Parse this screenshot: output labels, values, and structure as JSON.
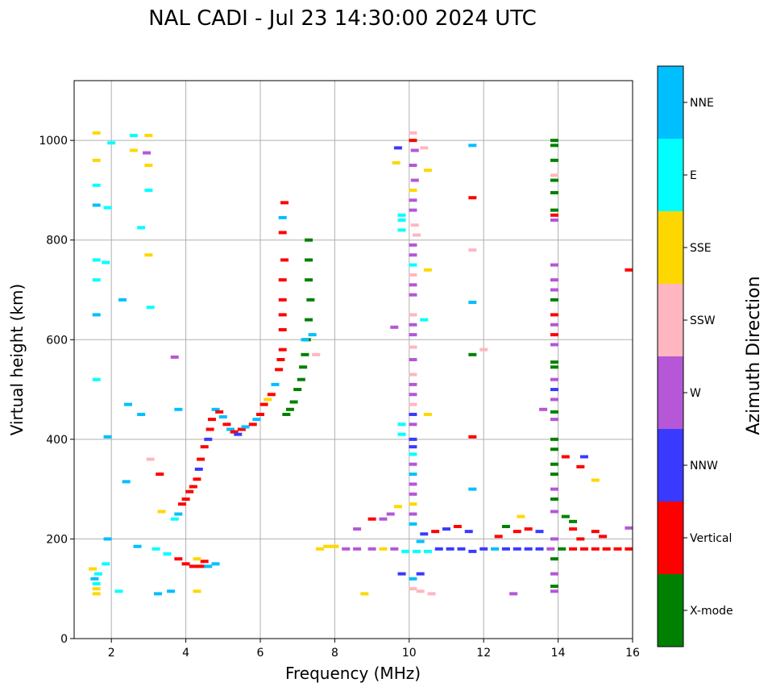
{
  "chart_data": {
    "type": "scatter",
    "title": "NAL CADI - Jul 23 14:30:00 2024 UTC",
    "xlabel": "Frequency (MHz)",
    "ylabel": "Virtual height (km)",
    "xlim": [
      1,
      16
    ],
    "ylim": [
      0,
      1120
    ],
    "xticks": [
      2,
      4,
      6,
      8,
      10,
      12,
      14,
      16
    ],
    "yticks": [
      0,
      200,
      400,
      600,
      800,
      1000
    ],
    "grid": true,
    "colorbar": {
      "title": "Azimuth Direction",
      "categories": [
        {
          "name": "X-mode",
          "color": "#008000"
        },
        {
          "name": "Vertical",
          "color": "#ff0000"
        },
        {
          "name": "NNW",
          "color": "#3a3aff"
        },
        {
          "name": "W",
          "color": "#b557d6"
        },
        {
          "name": "SSW",
          "color": "#ffb6c1"
        },
        {
          "name": "SSE",
          "color": "#ffd700"
        },
        {
          "name": "E",
          "color": "#00ffff"
        },
        {
          "name": "NNE",
          "color": "#00bfff"
        }
      ]
    },
    "points": [
      [
        1.6,
        100,
        "SSE"
      ],
      [
        1.6,
        110,
        "E"
      ],
      [
        1.55,
        120,
        "NNE"
      ],
      [
        1.6,
        90,
        "SSE"
      ],
      [
        1.65,
        130,
        "E"
      ],
      [
        1.5,
        140,
        "SSE"
      ],
      [
        1.6,
        520,
        "E"
      ],
      [
        1.6,
        650,
        "NNE"
      ],
      [
        1.6,
        720,
        "E"
      ],
      [
        1.6,
        760,
        "E"
      ],
      [
        1.6,
        870,
        "NNE"
      ],
      [
        1.6,
        910,
        "E"
      ],
      [
        1.6,
        960,
        "SSE"
      ],
      [
        1.6,
        1015,
        "SSE"
      ],
      [
        1.85,
        150,
        "E"
      ],
      [
        1.9,
        200,
        "NNE"
      ],
      [
        1.9,
        405,
        "NNE"
      ],
      [
        1.85,
        755,
        "E"
      ],
      [
        1.9,
        865,
        "E"
      ],
      [
        2.0,
        995,
        "E"
      ],
      [
        2.2,
        95,
        "E"
      ],
      [
        2.45,
        470,
        "NNE"
      ],
      [
        2.4,
        315,
        "NNE"
      ],
      [
        2.3,
        680,
        "NNE"
      ],
      [
        2.6,
        980,
        "SSE"
      ],
      [
        2.6,
        1010,
        "E"
      ],
      [
        2.7,
        185,
        "NNE"
      ],
      [
        2.8,
        450,
        "NNE"
      ],
      [
        2.8,
        825,
        "E"
      ],
      [
        3.0,
        900,
        "E"
      ],
      [
        3.0,
        950,
        "SSE"
      ],
      [
        3.0,
        770,
        "SSE"
      ],
      [
        3.05,
        665,
        "E"
      ],
      [
        3.05,
        360,
        "SSW"
      ],
      [
        3.0,
        1010,
        "SSE"
      ],
      [
        2.95,
        975,
        "W"
      ],
      [
        3.3,
        330,
        "Vertical"
      ],
      [
        3.35,
        255,
        "SSE"
      ],
      [
        3.25,
        90,
        "NNE"
      ],
      [
        3.6,
        95,
        "NNE"
      ],
      [
        3.7,
        565,
        "W"
      ],
      [
        3.8,
        460,
        "NNE"
      ],
      [
        3.7,
        240,
        "E"
      ],
      [
        3.8,
        250,
        "NNE"
      ],
      [
        3.9,
        270,
        "Vertical"
      ],
      [
        4.0,
        280,
        "Vertical"
      ],
      [
        4.1,
        295,
        "Vertical"
      ],
      [
        4.2,
        305,
        "Vertical"
      ],
      [
        4.3,
        320,
        "Vertical"
      ],
      [
        4.35,
        340,
        "NNW"
      ],
      [
        4.4,
        360,
        "Vertical"
      ],
      [
        4.5,
        385,
        "Vertical"
      ],
      [
        4.6,
        400,
        "NNW"
      ],
      [
        4.65,
        420,
        "Vertical"
      ],
      [
        4.7,
        440,
        "Vertical"
      ],
      [
        4.8,
        460,
        "NNE"
      ],
      [
        4.9,
        455,
        "Vertical"
      ],
      [
        5.0,
        445,
        "NNE"
      ],
      [
        5.1,
        430,
        "Vertical"
      ],
      [
        5.2,
        420,
        "NNE"
      ],
      [
        5.3,
        415,
        "Vertical"
      ],
      [
        5.4,
        410,
        "NNW"
      ],
      [
        5.5,
        420,
        "Vertical"
      ],
      [
        5.6,
        425,
        "NNE"
      ],
      [
        5.8,
        430,
        "Vertical"
      ],
      [
        5.9,
        440,
        "NNE"
      ],
      [
        6.0,
        450,
        "Vertical"
      ],
      [
        6.1,
        470,
        "Vertical"
      ],
      [
        6.2,
        480,
        "SSE"
      ],
      [
        6.3,
        490,
        "Vertical"
      ],
      [
        6.4,
        510,
        "NNE"
      ],
      [
        6.5,
        540,
        "Vertical"
      ],
      [
        6.55,
        560,
        "Vertical"
      ],
      [
        6.6,
        580,
        "Vertical"
      ],
      [
        6.6,
        620,
        "Vertical"
      ],
      [
        6.6,
        650,
        "Vertical"
      ],
      [
        6.6,
        680,
        "Vertical"
      ],
      [
        6.6,
        720,
        "Vertical"
      ],
      [
        6.65,
        760,
        "Vertical"
      ],
      [
        6.6,
        815,
        "Vertical"
      ],
      [
        6.6,
        845,
        "NNE"
      ],
      [
        6.65,
        875,
        "Vertical"
      ],
      [
        6.7,
        450,
        "X-mode"
      ],
      [
        6.8,
        460,
        "X-mode"
      ],
      [
        6.9,
        475,
        "X-mode"
      ],
      [
        7.0,
        500,
        "X-mode"
      ],
      [
        7.1,
        520,
        "X-mode"
      ],
      [
        7.15,
        545,
        "X-mode"
      ],
      [
        7.2,
        570,
        "X-mode"
      ],
      [
        7.25,
        600,
        "X-mode"
      ],
      [
        7.3,
        640,
        "X-mode"
      ],
      [
        7.35,
        680,
        "X-mode"
      ],
      [
        7.3,
        720,
        "X-mode"
      ],
      [
        7.3,
        760,
        "X-mode"
      ],
      [
        7.3,
        800,
        "X-mode"
      ],
      [
        7.2,
        600,
        "NNE"
      ],
      [
        7.4,
        610,
        "NNE"
      ],
      [
        7.5,
        570,
        "SSW"
      ],
      [
        3.8,
        160,
        "Vertical"
      ],
      [
        4.0,
        150,
        "Vertical"
      ],
      [
        4.2,
        145,
        "Vertical"
      ],
      [
        4.4,
        145,
        "Vertical"
      ],
      [
        4.6,
        145,
        "NNE"
      ],
      [
        4.8,
        150,
        "NNE"
      ],
      [
        4.5,
        155,
        "Vertical"
      ],
      [
        4.3,
        160,
        "SSE"
      ],
      [
        3.5,
        170,
        "E"
      ],
      [
        4.3,
        95,
        "SSE"
      ],
      [
        3.2,
        180,
        "E"
      ],
      [
        7.6,
        180,
        "SSE"
      ],
      [
        7.8,
        185,
        "SSE"
      ],
      [
        8.0,
        185,
        "SSE"
      ],
      [
        8.3,
        180,
        "W"
      ],
      [
        8.6,
        180,
        "W"
      ],
      [
        9.0,
        180,
        "W"
      ],
      [
        9.3,
        180,
        "SSE"
      ],
      [
        9.6,
        180,
        "W"
      ],
      [
        9.9,
        175,
        "E"
      ],
      [
        10.2,
        175,
        "E"
      ],
      [
        10.5,
        175,
        "E"
      ],
      [
        10.8,
        180,
        "NNW"
      ],
      [
        11.1,
        180,
        "NNW"
      ],
      [
        11.4,
        180,
        "NNW"
      ],
      [
        11.7,
        175,
        "NNW"
      ],
      [
        12.0,
        180,
        "NNW"
      ],
      [
        12.3,
        180,
        "NNE"
      ],
      [
        12.6,
        180,
        "NNW"
      ],
      [
        12.9,
        180,
        "NNW"
      ],
      [
        13.2,
        180,
        "NNW"
      ],
      [
        13.5,
        180,
        "NNW"
      ],
      [
        13.8,
        180,
        "W"
      ],
      [
        14.1,
        180,
        "X-mode"
      ],
      [
        14.4,
        180,
        "Vertical"
      ],
      [
        14.7,
        180,
        "Vertical"
      ],
      [
        15.0,
        180,
        "Vertical"
      ],
      [
        15.3,
        180,
        "Vertical"
      ],
      [
        15.6,
        180,
        "Vertical"
      ],
      [
        15.9,
        180,
        "Vertical"
      ],
      [
        15.9,
        222,
        "W"
      ],
      [
        15.9,
        740,
        "Vertical"
      ],
      [
        10.4,
        210,
        "NNW"
      ],
      [
        10.7,
        215,
        "Vertical"
      ],
      [
        11.0,
        220,
        "NNW"
      ],
      [
        11.3,
        225,
        "Vertical"
      ],
      [
        11.6,
        215,
        "NNW"
      ],
      [
        12.6,
        225,
        "X-mode"
      ],
      [
        12.9,
        215,
        "Vertical"
      ],
      [
        13.2,
        220,
        "Vertical"
      ],
      [
        13.5,
        215,
        "NNW"
      ],
      [
        12.4,
        205,
        "Vertical"
      ],
      [
        14.4,
        220,
        "Vertical"
      ],
      [
        14.6,
        200,
        "Vertical"
      ],
      [
        15.0,
        215,
        "Vertical"
      ],
      [
        15.2,
        205,
        "Vertical"
      ],
      [
        14.2,
        245,
        "X-mode"
      ],
      [
        14.4,
        235,
        "X-mode"
      ],
      [
        14.7,
        365,
        "NNW"
      ],
      [
        14.6,
        345,
        "Vertical"
      ],
      [
        15.0,
        318,
        "SSE"
      ],
      [
        14.2,
        365,
        "Vertical"
      ],
      [
        13.6,
        460,
        "W"
      ],
      [
        12.8,
        90,
        "W"
      ],
      [
        13.0,
        245,
        "SSE"
      ],
      [
        10.1,
        1015,
        "SSW"
      ],
      [
        10.1,
        1000,
        "Vertical"
      ],
      [
        10.15,
        980,
        "W"
      ],
      [
        10.1,
        950,
        "W"
      ],
      [
        10.15,
        920,
        "W"
      ],
      [
        10.1,
        900,
        "SSE"
      ],
      [
        10.1,
        880,
        "W"
      ],
      [
        10.1,
        860,
        "W"
      ],
      [
        10.15,
        830,
        "SSW"
      ],
      [
        10.2,
        810,
        "SSW"
      ],
      [
        10.1,
        790,
        "W"
      ],
      [
        10.1,
        770,
        "W"
      ],
      [
        10.1,
        750,
        "E"
      ],
      [
        10.1,
        730,
        "SSW"
      ],
      [
        10.1,
        710,
        "W"
      ],
      [
        10.1,
        690,
        "W"
      ],
      [
        10.1,
        650,
        "SSW"
      ],
      [
        10.1,
        630,
        "W"
      ],
      [
        10.1,
        610,
        "W"
      ],
      [
        10.1,
        585,
        "SSW"
      ],
      [
        10.1,
        560,
        "W"
      ],
      [
        10.1,
        530,
        "SSW"
      ],
      [
        10.1,
        510,
        "W"
      ],
      [
        10.1,
        490,
        "W"
      ],
      [
        10.1,
        470,
        "SSW"
      ],
      [
        10.1,
        450,
        "NNW"
      ],
      [
        10.1,
        430,
        "W"
      ],
      [
        10.1,
        400,
        "NNW"
      ],
      [
        10.1,
        385,
        "NNW"
      ],
      [
        10.1,
        370,
        "E"
      ],
      [
        10.1,
        350,
        "W"
      ],
      [
        10.1,
        330,
        "NNE"
      ],
      [
        10.1,
        310,
        "W"
      ],
      [
        10.1,
        290,
        "W"
      ],
      [
        10.1,
        270,
        "SSE"
      ],
      [
        10.1,
        250,
        "W"
      ],
      [
        10.1,
        230,
        "NNE"
      ],
      [
        10.1,
        120,
        "NNE"
      ],
      [
        10.1,
        100,
        "SSW"
      ],
      [
        10.4,
        985,
        "SSW"
      ],
      [
        9.8,
        850,
        "E"
      ],
      [
        9.8,
        820,
        "E"
      ],
      [
        9.8,
        840,
        "E"
      ],
      [
        9.8,
        430,
        "E"
      ],
      [
        9.8,
        410,
        "E"
      ],
      [
        9.7,
        985,
        "NNW"
      ],
      [
        9.65,
        955,
        "SSE"
      ],
      [
        9.6,
        625,
        "W"
      ],
      [
        9.8,
        130,
        "NNW"
      ],
      [
        10.3,
        130,
        "NNW"
      ],
      [
        10.3,
        95,
        "SSW"
      ],
      [
        10.4,
        640,
        "E"
      ],
      [
        10.5,
        940,
        "SSE"
      ],
      [
        10.5,
        740,
        "SSE"
      ],
      [
        10.5,
        450,
        "SSE"
      ],
      [
        10.6,
        90,
        "SSW"
      ],
      [
        8.8,
        90,
        "SSE"
      ],
      [
        8.6,
        220,
        "W"
      ],
      [
        9.0,
        240,
        "Vertical"
      ],
      [
        9.3,
        240,
        "W"
      ],
      [
        9.5,
        250,
        "W"
      ],
      [
        9.7,
        265,
        "SSE"
      ],
      [
        10.3,
        195,
        "NNE"
      ],
      [
        11.7,
        990,
        "NNE"
      ],
      [
        11.7,
        885,
        "Vertical"
      ],
      [
        11.7,
        780,
        "SSW"
      ],
      [
        11.7,
        675,
        "NNE"
      ],
      [
        11.7,
        570,
        "X-mode"
      ],
      [
        11.7,
        405,
        "Vertical"
      ],
      [
        11.7,
        300,
        "NNE"
      ],
      [
        12.0,
        580,
        "SSW"
      ],
      [
        13.9,
        1000,
        "X-mode"
      ],
      [
        13.9,
        990,
        "X-mode"
      ],
      [
        13.9,
        960,
        "X-mode"
      ],
      [
        13.9,
        930,
        "SSW"
      ],
      [
        13.9,
        920,
        "X-mode"
      ],
      [
        13.9,
        895,
        "X-mode"
      ],
      [
        13.9,
        860,
        "X-mode"
      ],
      [
        13.9,
        850,
        "Vertical"
      ],
      [
        13.9,
        840,
        "W"
      ],
      [
        13.9,
        750,
        "W"
      ],
      [
        13.9,
        720,
        "W"
      ],
      [
        13.9,
        700,
        "W"
      ],
      [
        13.9,
        680,
        "X-mode"
      ],
      [
        13.9,
        650,
        "Vertical"
      ],
      [
        13.9,
        630,
        "W"
      ],
      [
        13.9,
        610,
        "Vertical"
      ],
      [
        13.9,
        590,
        "W"
      ],
      [
        13.9,
        555,
        "X-mode"
      ],
      [
        13.9,
        545,
        "X-mode"
      ],
      [
        13.9,
        520,
        "W"
      ],
      [
        13.9,
        500,
        "NNW"
      ],
      [
        13.9,
        480,
        "W"
      ],
      [
        13.9,
        455,
        "X-mode"
      ],
      [
        13.9,
        440,
        "W"
      ],
      [
        13.9,
        400,
        "X-mode"
      ],
      [
        13.9,
        380,
        "X-mode"
      ],
      [
        13.9,
        350,
        "X-mode"
      ],
      [
        13.9,
        330,
        "X-mode"
      ],
      [
        13.9,
        300,
        "W"
      ],
      [
        13.9,
        280,
        "X-mode"
      ],
      [
        13.9,
        255,
        "W"
      ],
      [
        13.9,
        200,
        "W"
      ],
      [
        13.9,
        160,
        "X-mode"
      ],
      [
        13.9,
        130,
        "W"
      ],
      [
        13.9,
        105,
        "X-mode"
      ],
      [
        13.9,
        95,
        "W"
      ]
    ]
  }
}
